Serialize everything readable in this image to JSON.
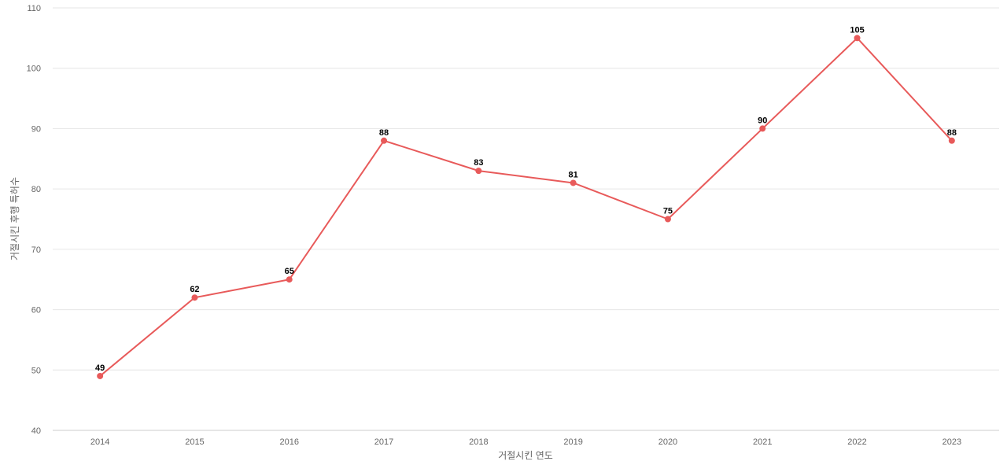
{
  "chart_data": {
    "type": "line",
    "title": "",
    "xlabel": "거절시킨 연도",
    "ylabel": "거절시킨 후행 특허수",
    "ylim": [
      40,
      110
    ],
    "yticks": [
      40,
      50,
      60,
      70,
      80,
      90,
      100,
      110
    ],
    "grid": true,
    "categories": [
      "2014",
      "2015",
      "2016",
      "2017",
      "2018",
      "2019",
      "2020",
      "2021",
      "2022",
      "2023"
    ],
    "series": [
      {
        "values": [
          49,
          62,
          65,
          88,
          83,
          81,
          75,
          90,
          105,
          88
        ],
        "color": "#e85a5a"
      }
    ]
  }
}
